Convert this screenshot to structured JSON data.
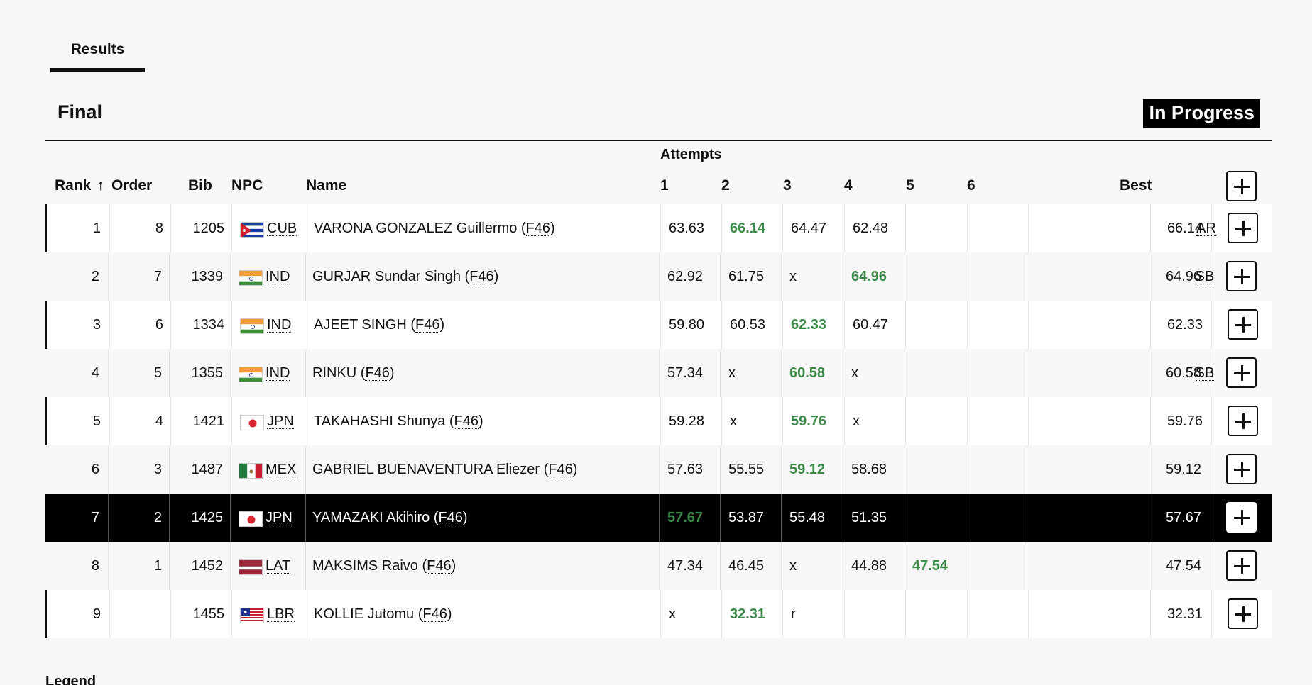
{
  "tabs": [
    {
      "label": "Results"
    }
  ],
  "phase_title": "Final",
  "status": "In Progress",
  "table": {
    "attempts_label": "Attempts",
    "headers": {
      "rank": "Rank",
      "order": "Order",
      "bib": "Bib",
      "npc": "NPC",
      "name": "Name",
      "a1": "1",
      "a2": "2",
      "a3": "3",
      "a4": "4",
      "a5": "5",
      "a6": "6",
      "best": "Best"
    },
    "rows": [
      {
        "rank": "1",
        "order": "8",
        "bib": "1205",
        "npc": "CUB",
        "flag": "cub-flag-icon",
        "name": "VARONA GONZALEZ Guillermo",
        "cls": "F46",
        "attempts": [
          "63.63",
          "66.14",
          "64.47",
          "62.48",
          "",
          ""
        ],
        "best_idx": 1,
        "best": "66.14",
        "record": "AR"
      },
      {
        "rank": "2",
        "order": "7",
        "bib": "1339",
        "npc": "IND",
        "flag": "ind-flag-icon",
        "name": "GURJAR Sundar Singh",
        "cls": "F46",
        "attempts": [
          "62.92",
          "61.75",
          "x",
          "64.96",
          "",
          ""
        ],
        "best_idx": 3,
        "best": "64.96",
        "record": "SB"
      },
      {
        "rank": "3",
        "order": "6",
        "bib": "1334",
        "npc": "IND",
        "flag": "ind-flag-icon",
        "name": "AJEET SINGH",
        "cls": "F46",
        "attempts": [
          "59.80",
          "60.53",
          "62.33",
          "60.47",
          "",
          ""
        ],
        "best_idx": 2,
        "best": "62.33",
        "record": ""
      },
      {
        "rank": "4",
        "order": "5",
        "bib": "1355",
        "npc": "IND",
        "flag": "ind-flag-icon",
        "name": "RINKU",
        "cls": "F46",
        "attempts": [
          "57.34",
          "x",
          "60.58",
          "x",
          "",
          ""
        ],
        "best_idx": 2,
        "best": "60.58",
        "record": "SB"
      },
      {
        "rank": "5",
        "order": "4",
        "bib": "1421",
        "npc": "JPN",
        "flag": "jpn-flag-icon",
        "name": "TAKAHASHI Shunya",
        "cls": "F46",
        "attempts": [
          "59.28",
          "x",
          "59.76",
          "x",
          "",
          ""
        ],
        "best_idx": 2,
        "best": "59.76",
        "record": ""
      },
      {
        "rank": "6",
        "order": "3",
        "bib": "1487",
        "npc": "MEX",
        "flag": "mex-flag-icon",
        "name": "GABRIEL BUENAVENTURA Eliezer",
        "cls": "F46",
        "attempts": [
          "57.63",
          "55.55",
          "59.12",
          "58.68",
          "",
          ""
        ],
        "best_idx": 2,
        "best": "59.12",
        "record": ""
      },
      {
        "rank": "7",
        "order": "2",
        "bib": "1425",
        "npc": "JPN",
        "flag": "jpn-flag-icon",
        "name": "YAMAZAKI Akihiro",
        "cls": "F46",
        "attempts": [
          "57.67",
          "53.87",
          "55.48",
          "51.35",
          "",
          ""
        ],
        "best_idx": 0,
        "best": "57.67",
        "record": "",
        "highlight": true
      },
      {
        "rank": "8",
        "order": "1",
        "bib": "1452",
        "npc": "LAT",
        "flag": "lat-flag-icon",
        "name": "MAKSIMS Raivo",
        "cls": "F46",
        "attempts": [
          "47.34",
          "46.45",
          "x",
          "44.88",
          "47.54",
          ""
        ],
        "best_idx": 4,
        "best": "47.54",
        "record": ""
      },
      {
        "rank": "9",
        "order": "",
        "bib": "1455",
        "npc": "LBR",
        "flag": "lbr-flag-icon",
        "name": "KOLLIE Jutomu",
        "cls": "F46",
        "attempts": [
          "x",
          "32.31",
          "r",
          "",
          "",
          ""
        ],
        "best_idx": 1,
        "best": "32.31",
        "record": ""
      }
    ]
  },
  "legend_title": "Legend",
  "colors": {
    "best_attempt": "#3c8a4a",
    "highlight_row": "#000000"
  }
}
